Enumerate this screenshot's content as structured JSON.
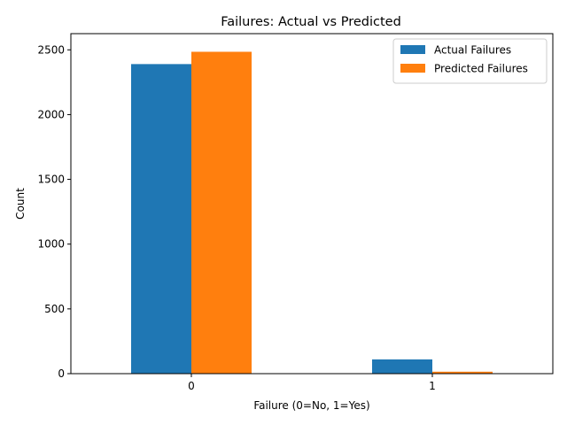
{
  "chart_data": {
    "type": "bar",
    "title": "Failures: Actual vs Predicted",
    "xlabel": "Failure (0=No, 1=Yes)",
    "ylabel": "Count",
    "categories": [
      "0",
      "1"
    ],
    "series": [
      {
        "name": "Actual Failures",
        "values": [
          2390,
          110
        ],
        "color": "#1f77b4"
      },
      {
        "name": "Predicted Failures",
        "values": [
          2485,
          15
        ],
        "color": "#ff7f0e"
      }
    ],
    "ylim": [
      0,
      2625
    ],
    "yticks": [
      0,
      500,
      1000,
      1500,
      2000,
      2500
    ],
    "grid": false,
    "legend_position": "top-right"
  }
}
